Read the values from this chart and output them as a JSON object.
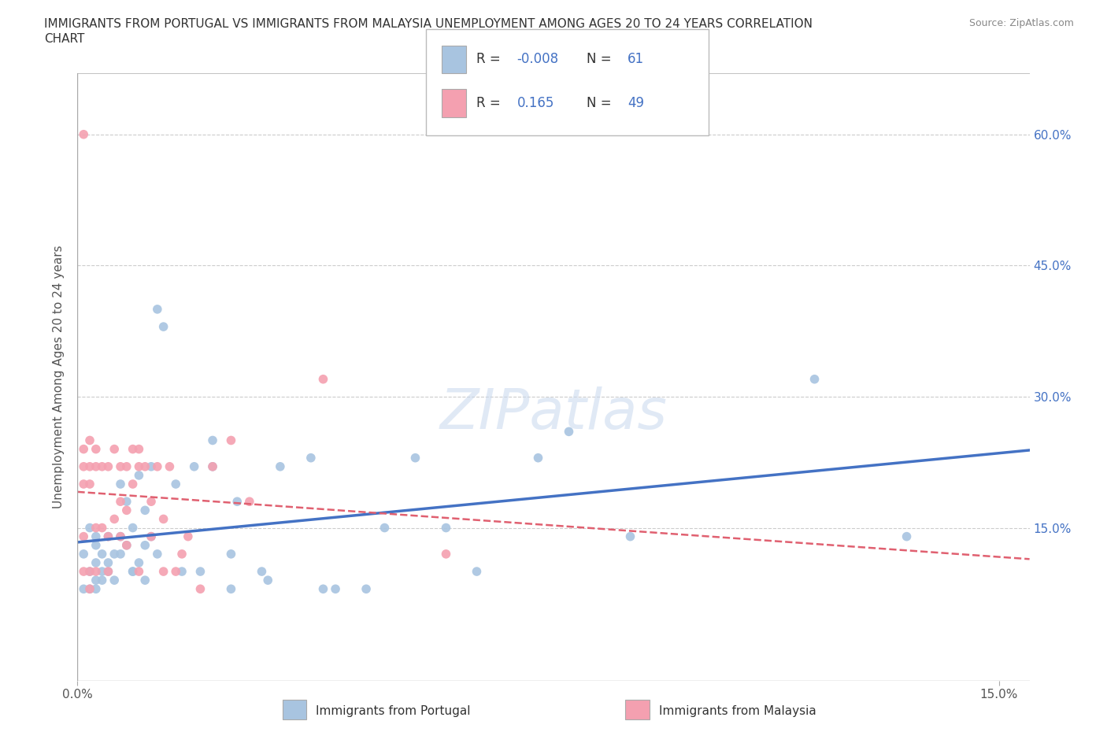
{
  "title_line1": "IMMIGRANTS FROM PORTUGAL VS IMMIGRANTS FROM MALAYSIA UNEMPLOYMENT AMONG AGES 20 TO 24 YEARS CORRELATION",
  "title_line2": "CHART",
  "source": "Source: ZipAtlas.com",
  "ylabel": "Unemployment Among Ages 20 to 24 years",
  "xlim": [
    0.0,
    0.155
  ],
  "ylim": [
    -0.025,
    0.67
  ],
  "ytick_vals": [
    0.15,
    0.3,
    0.45,
    0.6
  ],
  "ytick_labels": [
    "15.0%",
    "30.0%",
    "45.0%",
    "60.0%"
  ],
  "xtick_vals": [
    0.0,
    0.15
  ],
  "xtick_labels": [
    "0.0%",
    "15.0%"
  ],
  "portugal_R": -0.008,
  "portugal_N": 61,
  "malaysia_R": 0.165,
  "malaysia_N": 49,
  "portugal_color": "#a8c4e0",
  "malaysia_color": "#f4a0b0",
  "portugal_line_color": "#4472c4",
  "malaysia_line_color": "#e06070",
  "background_color": "#ffffff",
  "grid_color": "#cccccc",
  "portugal_x": [
    0.001,
    0.001,
    0.002,
    0.002,
    0.002,
    0.003,
    0.003,
    0.003,
    0.003,
    0.004,
    0.004,
    0.005,
    0.005,
    0.006,
    0.006,
    0.007,
    0.007,
    0.008,
    0.008,
    0.009,
    0.009,
    0.01,
    0.01,
    0.011,
    0.011,
    0.012,
    0.012,
    0.013,
    0.013,
    0.014,
    0.016,
    0.017,
    0.019,
    0.02,
    0.022,
    0.022,
    0.025,
    0.025,
    0.026,
    0.03,
    0.031,
    0.033,
    0.038,
    0.04,
    0.042,
    0.047,
    0.05,
    0.055,
    0.06,
    0.065,
    0.075,
    0.08,
    0.09,
    0.12,
    0.135,
    0.003,
    0.004,
    0.005,
    0.007,
    0.009,
    0.011
  ],
  "portugal_y": [
    0.12,
    0.08,
    0.1,
    0.15,
    0.08,
    0.13,
    0.11,
    0.09,
    0.14,
    0.1,
    0.12,
    0.14,
    0.1,
    0.12,
    0.09,
    0.2,
    0.14,
    0.18,
    0.13,
    0.15,
    0.1,
    0.21,
    0.11,
    0.17,
    0.09,
    0.22,
    0.14,
    0.4,
    0.12,
    0.38,
    0.2,
    0.1,
    0.22,
    0.1,
    0.22,
    0.25,
    0.08,
    0.12,
    0.18,
    0.1,
    0.09,
    0.22,
    0.23,
    0.08,
    0.08,
    0.08,
    0.15,
    0.23,
    0.15,
    0.1,
    0.23,
    0.26,
    0.14,
    0.32,
    0.14,
    0.08,
    0.09,
    0.11,
    0.12,
    0.1,
    0.13
  ],
  "malaysia_x": [
    0.001,
    0.001,
    0.001,
    0.001,
    0.001,
    0.002,
    0.002,
    0.002,
    0.002,
    0.003,
    0.003,
    0.003,
    0.003,
    0.004,
    0.004,
    0.005,
    0.005,
    0.005,
    0.006,
    0.006,
    0.007,
    0.007,
    0.007,
    0.008,
    0.008,
    0.008,
    0.009,
    0.009,
    0.01,
    0.01,
    0.01,
    0.011,
    0.012,
    0.012,
    0.013,
    0.014,
    0.014,
    0.015,
    0.016,
    0.017,
    0.018,
    0.02,
    0.022,
    0.025,
    0.028,
    0.04,
    0.001,
    0.002,
    0.06
  ],
  "malaysia_y": [
    0.1,
    0.14,
    0.2,
    0.22,
    0.24,
    0.25,
    0.2,
    0.22,
    0.1,
    0.24,
    0.22,
    0.15,
    0.1,
    0.22,
    0.15,
    0.22,
    0.14,
    0.1,
    0.24,
    0.16,
    0.22,
    0.18,
    0.14,
    0.22,
    0.17,
    0.13,
    0.24,
    0.2,
    0.24,
    0.22,
    0.1,
    0.22,
    0.18,
    0.14,
    0.22,
    0.16,
    0.1,
    0.22,
    0.1,
    0.12,
    0.14,
    0.08,
    0.22,
    0.25,
    0.18,
    0.32,
    0.6,
    0.08,
    0.12
  ]
}
